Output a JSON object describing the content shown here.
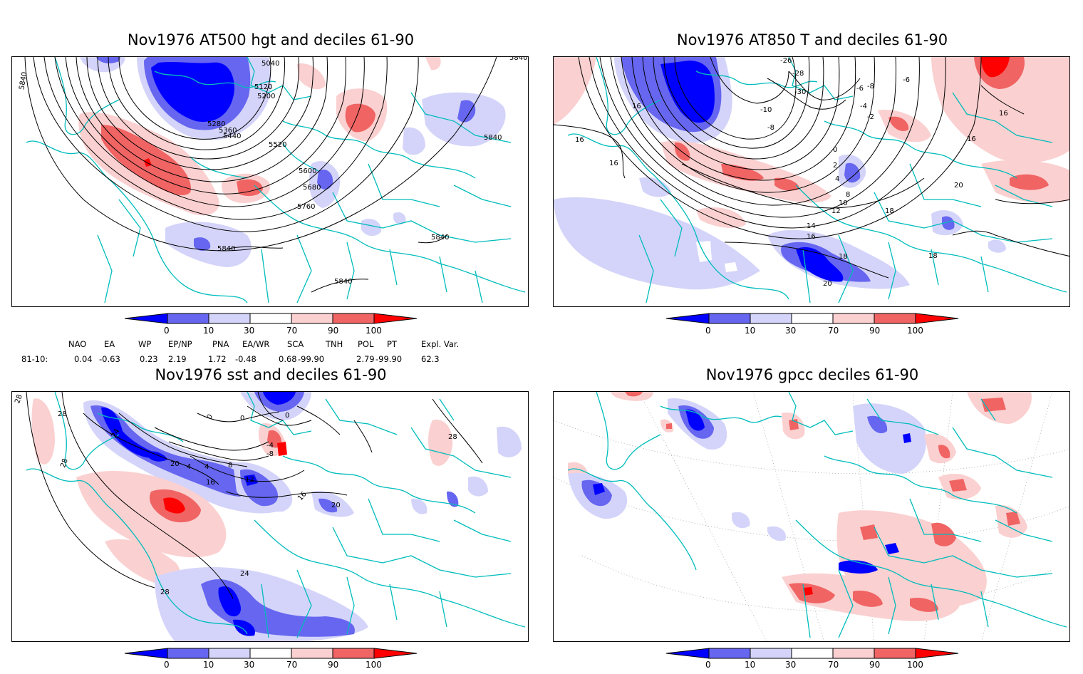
{
  "panels": {
    "tl": {
      "title": "Nov1976 AT500 hgt and deciles 61-90",
      "contour_labels": [
        "5040",
        "5120",
        "5200",
        "5280",
        "5360",
        "5440",
        "5520",
        "5600",
        "5680",
        "5760",
        "5840",
        "5840",
        "5840",
        "5840",
        "5840",
        "5840"
      ]
    },
    "tr": {
      "title": "Nov1976 AT850 T and deciles 61-90",
      "contour_labels": [
        "-26",
        "-28",
        "-30",
        "-10",
        "-8",
        "-8",
        "-6",
        "-6",
        "-4",
        "-2",
        "0",
        "2",
        "4",
        "8",
        "10",
        "12",
        "14",
        "16",
        "16",
        "16",
        "16",
        "16",
        "18",
        "18",
        "18",
        "20",
        "20",
        "16"
      ]
    },
    "bl": {
      "title": "Nov1976 sst and deciles 61-90",
      "contour_labels": [
        "28",
        "28",
        "28",
        "28",
        "24",
        "20",
        "16",
        "12",
        "8",
        "4",
        "0",
        "0",
        "0",
        "-4",
        "-8",
        "4",
        "16",
        "20",
        "24",
        "28"
      ]
    },
    "br": {
      "title": "Nov1976 gpcc deciles 61-90",
      "contour_labels": []
    }
  },
  "colorbar": {
    "ticks": [
      "0",
      "10",
      "30",
      "70",
      "90",
      "100"
    ],
    "colors": [
      "#0000ff",
      "#6666f0",
      "#d4d4fa",
      "#ffffff",
      "#fbd0d0",
      "#f06464",
      "#ff0000"
    ]
  },
  "teleconnections": {
    "headers": [
      "NAO",
      "EA",
      "WP",
      "EP/NP",
      "PNA",
      "EA/WR",
      "SCA",
      "TNH",
      "POL",
      "PT",
      "Expl. Var."
    ],
    "row_label": "81-10:",
    "values": [
      "0.04",
      "-0.63",
      "0.23",
      "2.19",
      "1.72",
      "-0.48",
      "0.68",
      "-99.90",
      "2.79",
      "-99.90",
      "62.3"
    ]
  }
}
